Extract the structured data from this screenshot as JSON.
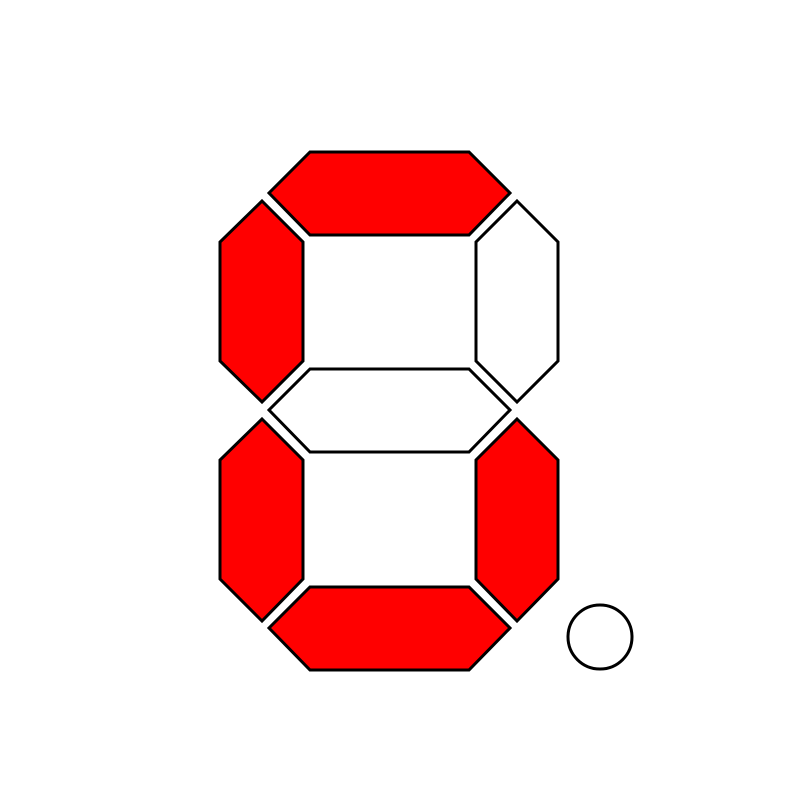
{
  "display": {
    "colors": {
      "on": "#ff0000",
      "off": "#ffffff",
      "outline": "#000000",
      "background": "#ffffff"
    },
    "segments": {
      "a": true,
      "b": false,
      "c": true,
      "d": true,
      "e": true,
      "f": true,
      "g": false
    },
    "decimal_point": false
  }
}
